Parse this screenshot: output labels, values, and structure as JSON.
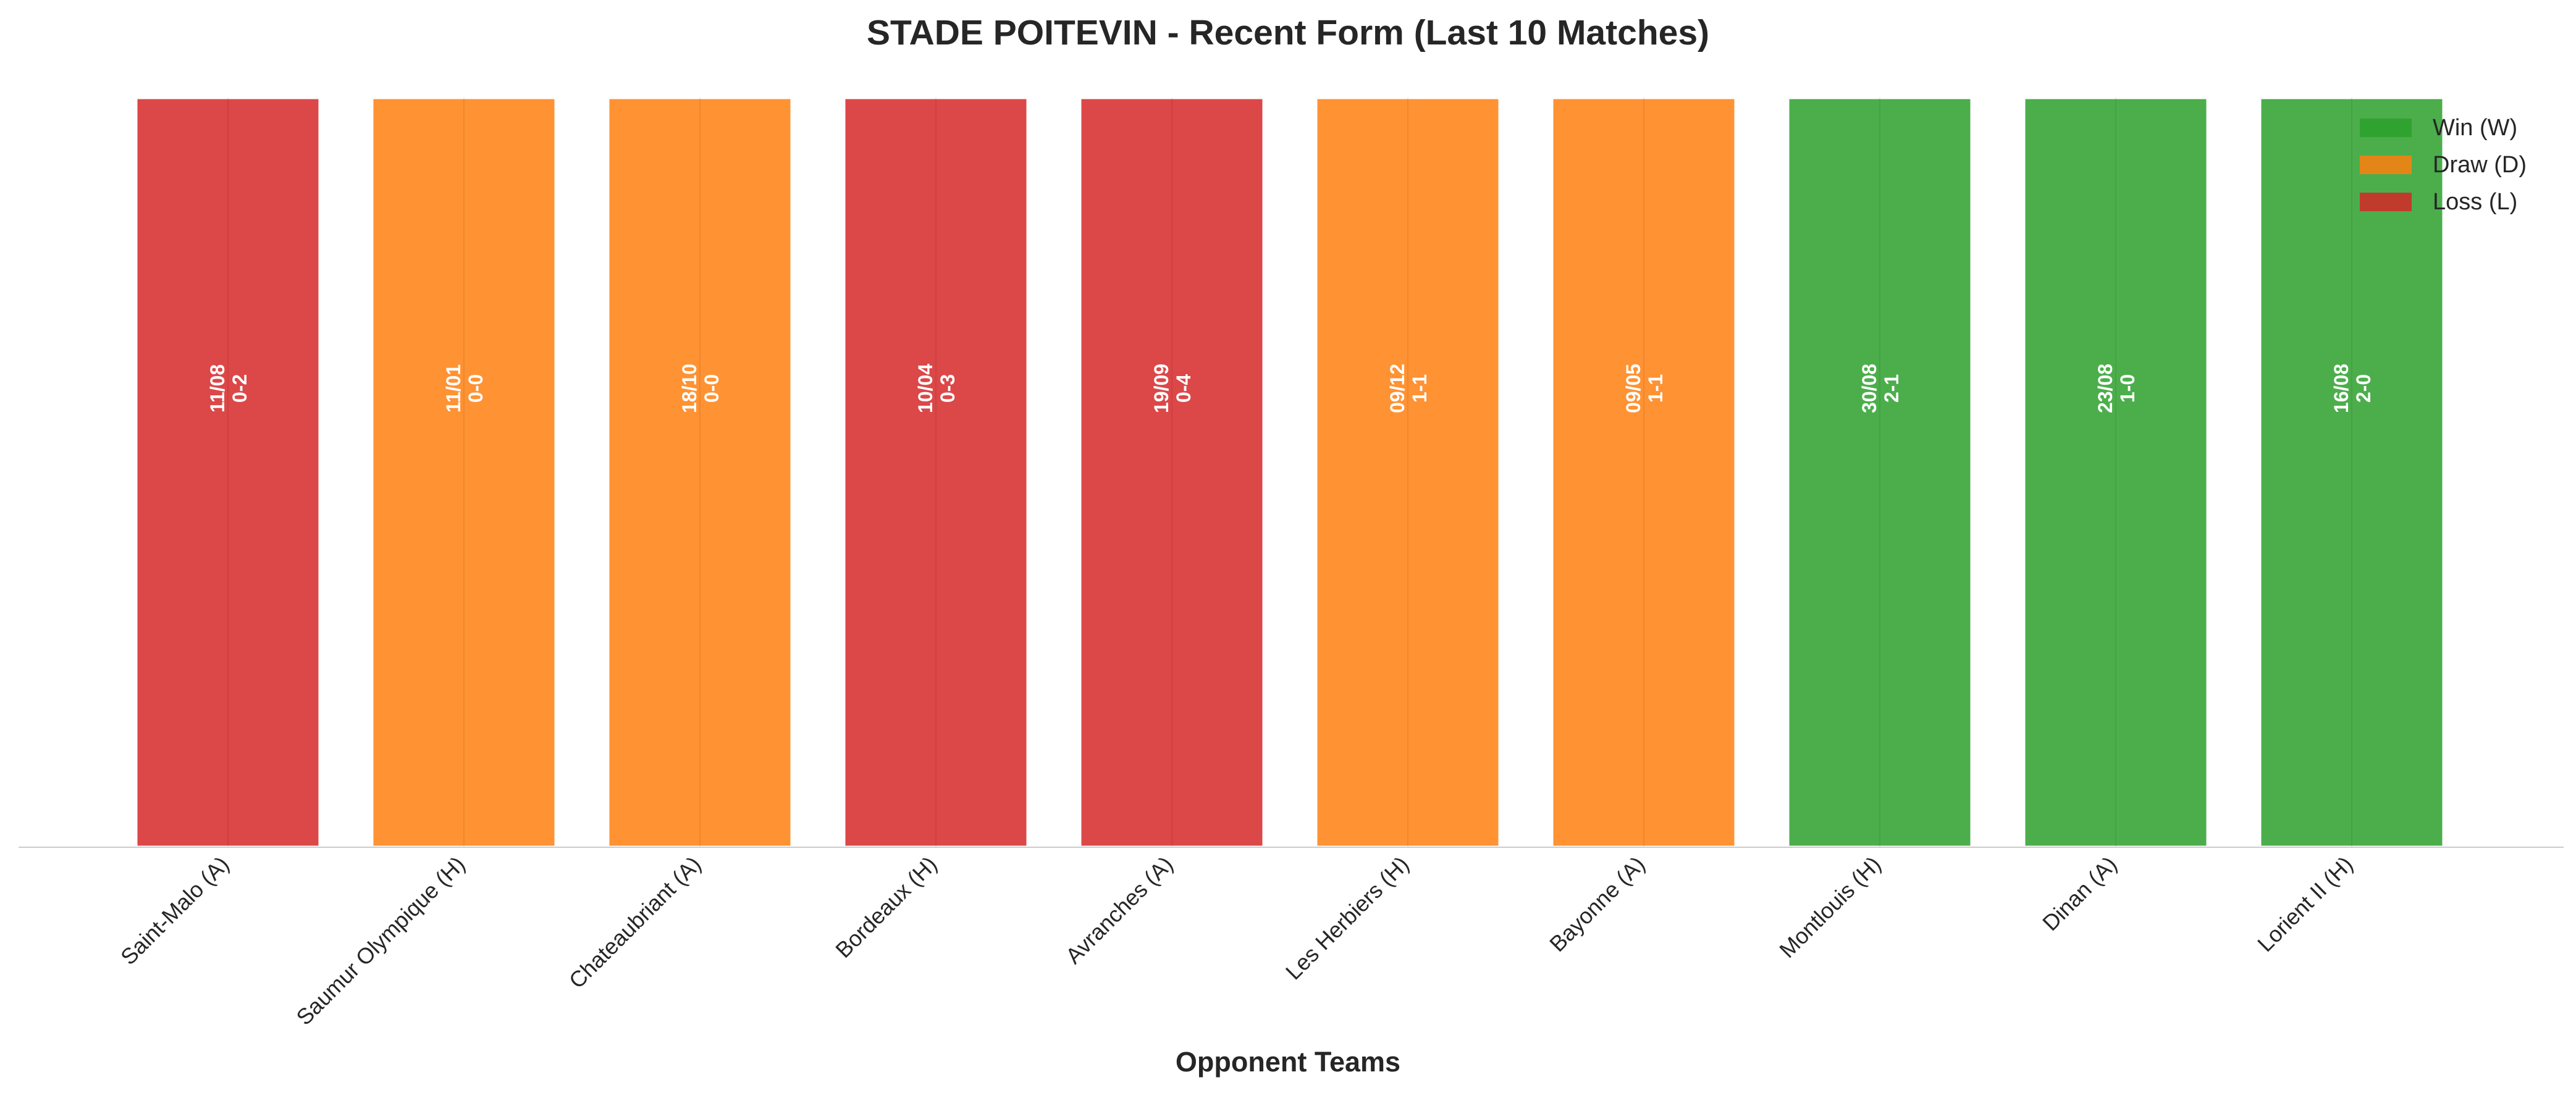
{
  "chart_data": {
    "type": "bar",
    "title": "STADE POITEVIN - Recent Form (Last 10 Matches)",
    "xlabel": "Opponent Teams",
    "ylabel": "",
    "ylim": [
      0,
      1
    ],
    "grid": false,
    "legend_position": "top-right",
    "categories": [
      "Saint-Malo (A)",
      "Saumur Olympique (H)",
      "Chateaubriant (A)",
      "Bordeaux (H)",
      "Avranches (A)",
      "Les Herbiers (H)",
      "Bayonne (A)",
      "Montlouis (H)",
      "Dinan (A)",
      "Lorient II (H)"
    ],
    "values": [
      1,
      1,
      1,
      1,
      1,
      1,
      1,
      1,
      1,
      1
    ],
    "results": [
      "L",
      "D",
      "D",
      "L",
      "L",
      "D",
      "D",
      "W",
      "W",
      "W"
    ],
    "dates": [
      "11/08",
      "11/01",
      "18/10",
      "10/04",
      "19/09",
      "09/12",
      "09/05",
      "30/08",
      "23/08",
      "16/08"
    ],
    "scores": [
      "0-2",
      "0-0",
      "0-0",
      "0-3",
      "0-4",
      "1-1",
      "1-1",
      "2-1",
      "1-0",
      "2-0"
    ],
    "legend": [
      {
        "key": "W",
        "label": "Win (W)",
        "color": "#2ca02c"
      },
      {
        "key": "D",
        "label": "Draw (D)",
        "color": "#ff7f0e"
      },
      {
        "key": "L",
        "label": "Loss (L)",
        "color": "#d62728"
      }
    ]
  }
}
